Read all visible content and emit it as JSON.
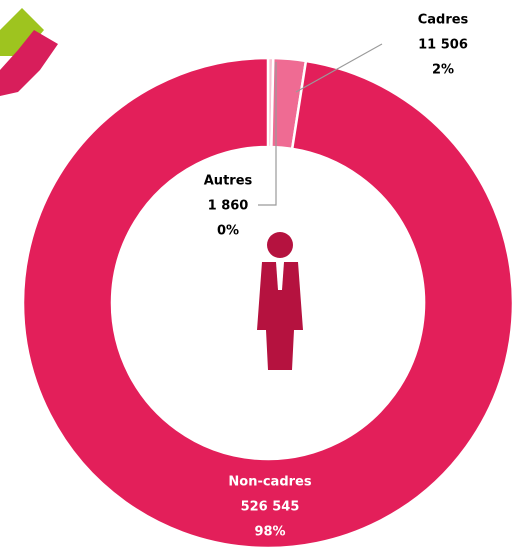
{
  "chart_data": {
    "type": "donut",
    "categories": [
      "Autres",
      "Cadres",
      "Non-cadres"
    ],
    "values": [
      1860,
      11506,
      526545
    ],
    "value_labels": [
      "1 860",
      "11 506",
      "526 545"
    ],
    "percent_labels": [
      "0%",
      "2%",
      "98%"
    ],
    "colors": [
      "#f6c3d2",
      "#ef6b93",
      "#e31f5a"
    ]
  }
}
